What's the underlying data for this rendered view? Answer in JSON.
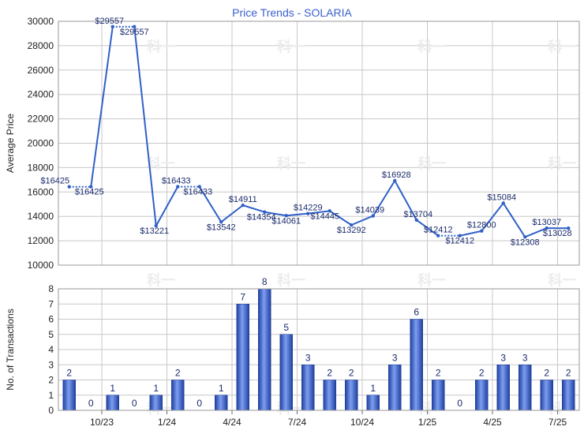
{
  "chart_data": [
    {
      "type": "line",
      "title": "Price Trends - SOLARIA",
      "xlabel": "",
      "ylabel": "Average Price",
      "ylim": [
        10000,
        30000
      ],
      "yticks": [
        10000,
        12000,
        14000,
        16000,
        18000,
        20000,
        22000,
        24000,
        26000,
        28000,
        30000
      ],
      "grid": true,
      "points": [
        {
          "x": 0.5,
          "y": 16425,
          "label": "$16425"
        },
        {
          "x": 1.5,
          "y": 16425,
          "label": "$16425"
        },
        {
          "x": 2.5,
          "y": 29557,
          "label": "$29557"
        },
        {
          "x": 3.5,
          "y": 29557,
          "label": "$29557"
        },
        {
          "x": 4.5,
          "y": 13221,
          "label": "$13221"
        },
        {
          "x": 5.5,
          "y": 16433,
          "label": "$16433"
        },
        {
          "x": 6.5,
          "y": 16433,
          "label": "$16433"
        },
        {
          "x": 7.5,
          "y": 13542,
          "label": "$13542"
        },
        {
          "x": 8.5,
          "y": 14911,
          "label": "$14911"
        },
        {
          "x": 9.5,
          "y": 14354,
          "label": "$14354"
        },
        {
          "x": 10.5,
          "y": 14061,
          "label": "$14061"
        },
        {
          "x": 11.5,
          "y": 14229,
          "label": "$14229"
        },
        {
          "x": 12.5,
          "y": 14445,
          "label": "$14445"
        },
        {
          "x": 13.5,
          "y": 13292,
          "label": "$13292"
        },
        {
          "x": 14.5,
          "y": 14039,
          "label": "$14039"
        },
        {
          "x": 15.5,
          "y": 16928,
          "label": "$16928"
        },
        {
          "x": 16.5,
          "y": 13704,
          "label": "$13704"
        },
        {
          "x": 17.5,
          "y": 12412,
          "label": "$12412"
        },
        {
          "x": 18.5,
          "y": 12412,
          "label": "$12412"
        },
        {
          "x": 19.5,
          "y": 12800,
          "label": "$12800"
        },
        {
          "x": 20.5,
          "y": 15084,
          "label": "$15084"
        },
        {
          "x": 21.5,
          "y": 12308,
          "label": "$12308"
        },
        {
          "x": 22.5,
          "y": 13037,
          "label": "$13037"
        },
        {
          "x": 23.5,
          "y": 13028,
          "label": "$13028"
        }
      ],
      "dotted_segments": [
        [
          0,
          1
        ],
        [
          2,
          3
        ],
        [
          5,
          6
        ],
        [
          17,
          18
        ]
      ],
      "color": "#3060c8"
    },
    {
      "type": "bar",
      "title": "",
      "xlabel": "",
      "ylabel": "No. of Transactions",
      "ylim": [
        0,
        8
      ],
      "yticks": [
        0,
        1,
        2,
        3,
        4,
        5,
        6,
        7,
        8
      ],
      "grid": true,
      "values": [
        2,
        0,
        1,
        0,
        1,
        2,
        0,
        1,
        7,
        8,
        5,
        3,
        2,
        2,
        1,
        3,
        6,
        2,
        0,
        2,
        3,
        3,
        2,
        2
      ],
      "color": "#2f55c0"
    }
  ],
  "x_axis": {
    "ticks": [
      {
        "pos": 2,
        "label": "10/23"
      },
      {
        "pos": 5,
        "label": "1/24"
      },
      {
        "pos": 8,
        "label": "4/24"
      },
      {
        "pos": 11,
        "label": "7/24"
      },
      {
        "pos": 14,
        "label": "10/24"
      },
      {
        "pos": 17,
        "label": "1/25"
      },
      {
        "pos": 20,
        "label": "4/25"
      },
      {
        "pos": 23,
        "label": "7/25"
      }
    ],
    "domain": [
      0,
      24
    ]
  },
  "watermark": "科一"
}
